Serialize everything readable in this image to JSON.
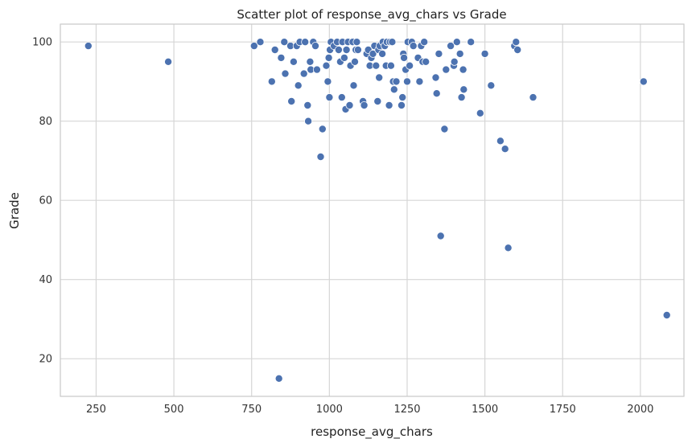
{
  "chart_data": {
    "type": "scatter",
    "title": "Scatter plot of response_avg_chars vs Grade",
    "xlabel": "response_avg_chars",
    "ylabel": "Grade",
    "xlim": [
      135,
      2140
    ],
    "ylim": [
      10.5,
      104.5
    ],
    "xticks": [
      250,
      500,
      750,
      1000,
      1250,
      1500,
      1750,
      2000
    ],
    "yticks": [
      20,
      40,
      60,
      80,
      100
    ],
    "grid": true,
    "point_color": "#4c72b0",
    "points": [
      [
        225,
        99
      ],
      [
        482,
        95
      ],
      [
        758,
        99
      ],
      [
        778,
        100
      ],
      [
        815,
        90
      ],
      [
        825,
        98
      ],
      [
        838,
        15
      ],
      [
        845,
        96
      ],
      [
        855,
        100
      ],
      [
        858,
        92
      ],
      [
        875,
        99
      ],
      [
        878,
        85
      ],
      [
        885,
        95
      ],
      [
        895,
        99
      ],
      [
        900,
        89
      ],
      [
        905,
        100
      ],
      [
        918,
        92
      ],
      [
        922,
        100
      ],
      [
        930,
        84
      ],
      [
        932,
        80
      ],
      [
        938,
        95
      ],
      [
        940,
        93
      ],
      [
        948,
        100
      ],
      [
        955,
        99
      ],
      [
        960,
        93
      ],
      [
        972,
        71
      ],
      [
        978,
        78
      ],
      [
        990,
        94
      ],
      [
        995,
        90
      ],
      [
        998,
        96
      ],
      [
        1000,
        86
      ],
      [
        1002,
        98
      ],
      [
        1005,
        100
      ],
      [
        1015,
        99
      ],
      [
        1025,
        100
      ],
      [
        1030,
        98
      ],
      [
        1035,
        95
      ],
      [
        1040,
        86
      ],
      [
        1042,
        100
      ],
      [
        1048,
        96
      ],
      [
        1052,
        83
      ],
      [
        1055,
        98
      ],
      [
        1060,
        100
      ],
      [
        1065,
        84
      ],
      [
        1068,
        94
      ],
      [
        1075,
        100
      ],
      [
        1078,
        89
      ],
      [
        1082,
        95
      ],
      [
        1085,
        98
      ],
      [
        1088,
        100
      ],
      [
        1092,
        98
      ],
      [
        1108,
        85
      ],
      [
        1112,
        84
      ],
      [
        1120,
        97
      ],
      [
        1125,
        98
      ],
      [
        1130,
        94
      ],
      [
        1135,
        96
      ],
      [
        1140,
        97
      ],
      [
        1145,
        99
      ],
      [
        1150,
        94
      ],
      [
        1155,
        85
      ],
      [
        1158,
        98
      ],
      [
        1160,
        91
      ],
      [
        1162,
        99
      ],
      [
        1170,
        97
      ],
      [
        1172,
        100
      ],
      [
        1178,
        99
      ],
      [
        1182,
        94
      ],
      [
        1185,
        100
      ],
      [
        1192,
        84
      ],
      [
        1195,
        100
      ],
      [
        1198,
        94
      ],
      [
        1202,
        100
      ],
      [
        1205,
        90
      ],
      [
        1208,
        88
      ],
      [
        1215,
        90
      ],
      [
        1232,
        84
      ],
      [
        1235,
        86
      ],
      [
        1238,
        97
      ],
      [
        1240,
        96
      ],
      [
        1245,
        93
      ],
      [
        1250,
        90
      ],
      [
        1252,
        100
      ],
      [
        1258,
        94
      ],
      [
        1265,
        100
      ],
      [
        1270,
        99
      ],
      [
        1285,
        96
      ],
      [
        1290,
        90
      ],
      [
        1295,
        99
      ],
      [
        1300,
        95
      ],
      [
        1305,
        100
      ],
      [
        1310,
        95
      ],
      [
        1342,
        91
      ],
      [
        1345,
        87
      ],
      [
        1352,
        97
      ],
      [
        1358,
        51
      ],
      [
        1370,
        78
      ],
      [
        1375,
        93
      ],
      [
        1390,
        99
      ],
      [
        1400,
        94
      ],
      [
        1402,
        95
      ],
      [
        1410,
        100
      ],
      [
        1420,
        97
      ],
      [
        1425,
        86
      ],
      [
        1430,
        93
      ],
      [
        1432,
        88
      ],
      [
        1455,
        100
      ],
      [
        1485,
        82
      ],
      [
        1500,
        97
      ],
      [
        1520,
        89
      ],
      [
        1550,
        75
      ],
      [
        1565,
        73
      ],
      [
        1575,
        48
      ],
      [
        1595,
        99
      ],
      [
        1600,
        100
      ],
      [
        1605,
        98
      ],
      [
        1655,
        86
      ],
      [
        2010,
        90
      ],
      [
        2085,
        31
      ]
    ]
  }
}
